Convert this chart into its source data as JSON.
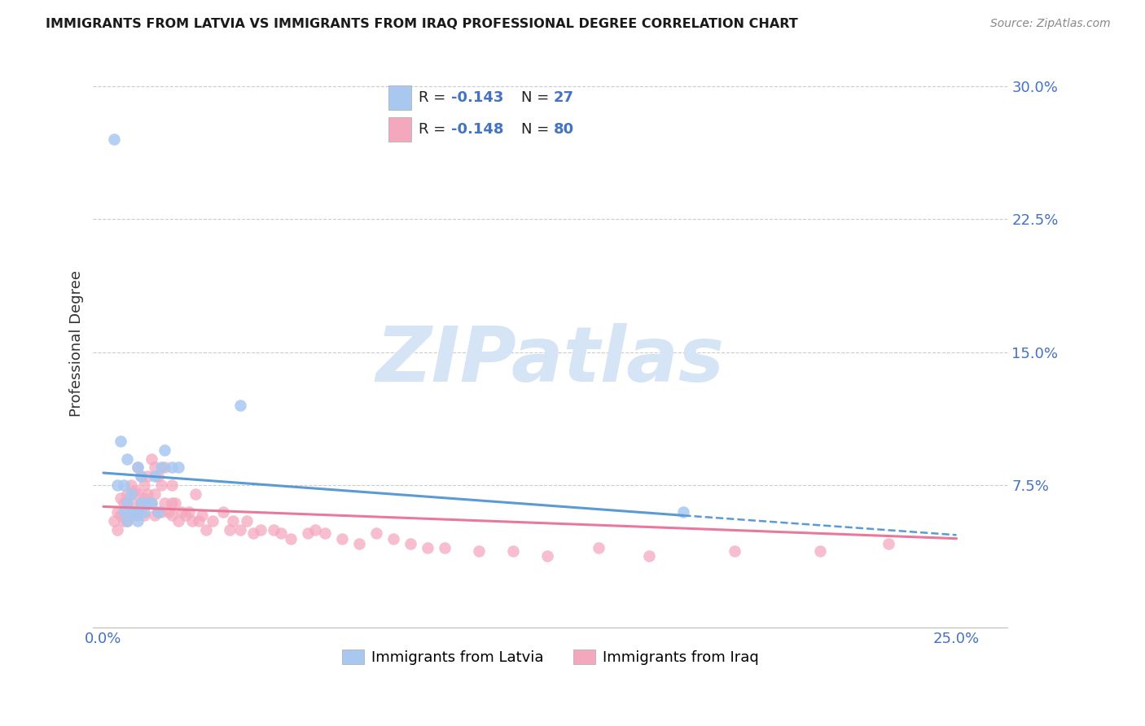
{
  "title": "IMMIGRANTS FROM LATVIA VS IMMIGRANTS FROM IRAQ PROFESSIONAL DEGREE CORRELATION CHART",
  "source": "Source: ZipAtlas.com",
  "ylabel": "Professional Degree",
  "xlim": [
    -0.003,
    0.265
  ],
  "ylim": [
    -0.005,
    0.315
  ],
  "color_latvia": "#A8C8F0",
  "color_iraq": "#F4A8BE",
  "color_latvia_line": "#5B9BD5",
  "color_iraq_line": "#E8799A",
  "color_axis_labels": "#4472C4",
  "color_right_labels": "#4472C4",
  "watermark_text": "ZIPatlas",
  "watermark_color": "#D5E5F5",
  "latvia_x": [
    0.003,
    0.004,
    0.005,
    0.006,
    0.006,
    0.007,
    0.007,
    0.007,
    0.008,
    0.008,
    0.009,
    0.01,
    0.01,
    0.01,
    0.011,
    0.011,
    0.012,
    0.013,
    0.014,
    0.015,
    0.016,
    0.017,
    0.018,
    0.02,
    0.022,
    0.04,
    0.17
  ],
  "latvia_y": [
    0.27,
    0.075,
    0.1,
    0.06,
    0.075,
    0.065,
    0.055,
    0.09,
    0.06,
    0.07,
    0.06,
    0.055,
    0.06,
    0.085,
    0.065,
    0.08,
    0.06,
    0.065,
    0.065,
    0.08,
    0.06,
    0.085,
    0.095,
    0.085,
    0.085,
    0.12,
    0.06
  ],
  "iraq_x": [
    0.003,
    0.004,
    0.004,
    0.005,
    0.005,
    0.006,
    0.006,
    0.007,
    0.007,
    0.007,
    0.008,
    0.008,
    0.008,
    0.009,
    0.009,
    0.01,
    0.01,
    0.01,
    0.01,
    0.011,
    0.011,
    0.012,
    0.012,
    0.012,
    0.013,
    0.013,
    0.014,
    0.014,
    0.015,
    0.015,
    0.015,
    0.016,
    0.016,
    0.017,
    0.017,
    0.018,
    0.018,
    0.019,
    0.02,
    0.02,
    0.02,
    0.021,
    0.022,
    0.023,
    0.024,
    0.025,
    0.026,
    0.027,
    0.028,
    0.029,
    0.03,
    0.032,
    0.035,
    0.037,
    0.038,
    0.04,
    0.042,
    0.044,
    0.046,
    0.05,
    0.052,
    0.055,
    0.06,
    0.062,
    0.065,
    0.07,
    0.075,
    0.08,
    0.085,
    0.09,
    0.095,
    0.1,
    0.11,
    0.12,
    0.13,
    0.145,
    0.16,
    0.185,
    0.21,
    0.23
  ],
  "iraq_y": [
    0.055,
    0.06,
    0.05,
    0.058,
    0.068,
    0.055,
    0.065,
    0.055,
    0.06,
    0.07,
    0.058,
    0.065,
    0.075,
    0.06,
    0.072,
    0.06,
    0.07,
    0.058,
    0.085,
    0.065,
    0.08,
    0.068,
    0.075,
    0.058,
    0.07,
    0.08,
    0.065,
    0.09,
    0.058,
    0.07,
    0.085,
    0.06,
    0.08,
    0.06,
    0.075,
    0.065,
    0.085,
    0.06,
    0.058,
    0.065,
    0.075,
    0.065,
    0.055,
    0.06,
    0.058,
    0.06,
    0.055,
    0.07,
    0.055,
    0.058,
    0.05,
    0.055,
    0.06,
    0.05,
    0.055,
    0.05,
    0.055,
    0.048,
    0.05,
    0.05,
    0.048,
    0.045,
    0.048,
    0.05,
    0.048,
    0.045,
    0.042,
    0.048,
    0.045,
    0.042,
    0.04,
    0.04,
    0.038,
    0.038,
    0.035,
    0.04,
    0.035,
    0.038,
    0.038,
    0.042
  ],
  "trend_lv_x0": 0.0,
  "trend_lv_y0": 0.082,
  "trend_lv_x1": 0.17,
  "trend_lv_y1": 0.058,
  "trend_lv_dash_x0": 0.17,
  "trend_lv_dash_y0": 0.058,
  "trend_lv_dash_x1": 0.25,
  "trend_lv_dash_y1": 0.047,
  "trend_iq_x0": 0.0,
  "trend_iq_y0": 0.063,
  "trend_iq_x1": 0.25,
  "trend_iq_y1": 0.045
}
